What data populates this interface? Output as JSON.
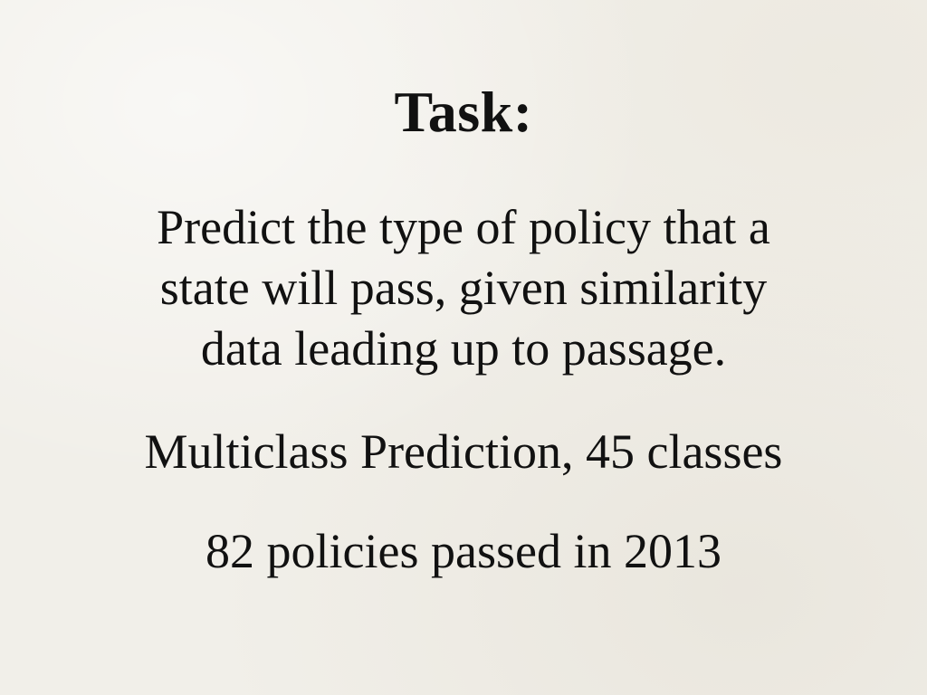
{
  "slide": {
    "title": "Task:",
    "description_lines": [
      "Predict the type of policy that a",
      "state will pass, given similarity",
      "data leading up to passage."
    ],
    "multiclass": "Multiclass Prediction, 45 classes",
    "policies": "82 policies passed in 2013"
  }
}
